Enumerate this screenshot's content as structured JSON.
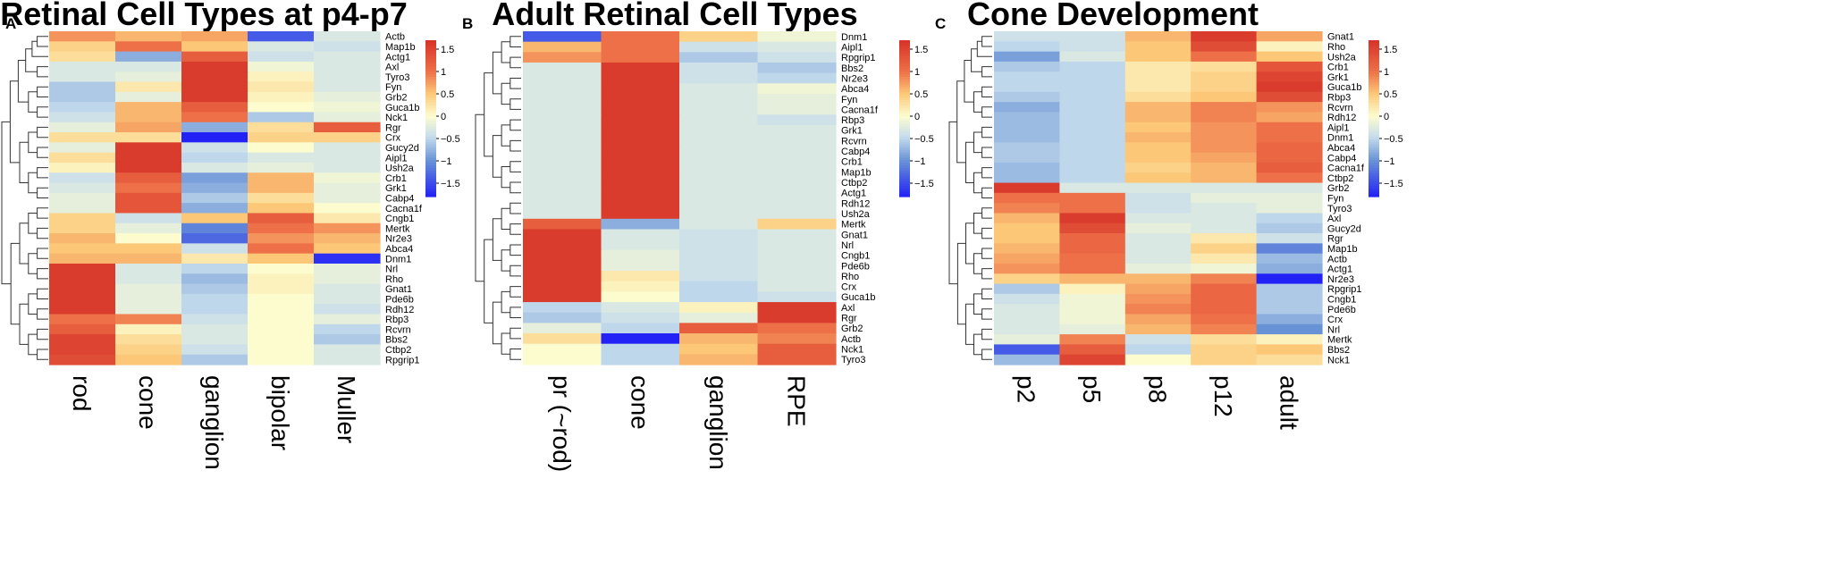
{
  "chart_data": [
    {
      "type": "heatmap",
      "panel": "A",
      "title": "Retinal Cell Types at p4-p7",
      "columns": [
        "rod",
        "cone",
        "ganglion",
        "bipolar",
        "Muller"
      ],
      "rows": [
        "Actb",
        "Map1b",
        "Actg1",
        "Axl",
        "Tyro3",
        "Fyn",
        "Grb2",
        "Guca1b",
        "Nck1",
        "Rgr",
        "Crx",
        "Gucy2d",
        "Aipl1",
        "Ush2a",
        "Crb1",
        "Grk1",
        "Cabp4",
        "Cacna1f",
        "Cngb1",
        "Mertk",
        "Nr2e3",
        "Abca4",
        "Dnm1",
        "Nrl",
        "Rho",
        "Gnat1",
        "Pde6b",
        "Rdh12",
        "Rbp3",
        "Rcvrn",
        "Bbs2",
        "Ctbp2",
        "Rpgrip1"
      ],
      "values": [
        [
          0.8,
          0.6,
          0.7,
          -1.4,
          -0.3
        ],
        [
          0.4,
          1.0,
          0.5,
          -0.3,
          -0.4
        ],
        [
          0.3,
          -0.8,
          1.2,
          -0.4,
          -0.3
        ],
        [
          -0.3,
          -0.3,
          1.6,
          -0.1,
          -0.3
        ],
        [
          -0.3,
          -0.2,
          1.6,
          0.1,
          -0.3
        ],
        [
          -0.6,
          0.2,
          1.6,
          0.2,
          -0.3
        ],
        [
          -0.6,
          -0.2,
          1.6,
          0.1,
          -0.2
        ],
        [
          -0.5,
          0.6,
          1.2,
          0.0,
          -0.1
        ],
        [
          -0.4,
          0.6,
          1.0,
          -0.6,
          -0.2
        ],
        [
          -0.2,
          0.7,
          -0.8,
          0.3,
          1.2
        ],
        [
          0.3,
          0.3,
          -1.9,
          0.4,
          0.4
        ],
        [
          -0.2,
          1.6,
          -0.4,
          0.0,
          -0.3
        ],
        [
          0.3,
          1.6,
          -0.5,
          -0.3,
          -0.3
        ],
        [
          0.1,
          1.6,
          -0.3,
          -0.2,
          -0.3
        ],
        [
          -0.4,
          1.2,
          -0.9,
          0.6,
          -0.1
        ],
        [
          -0.3,
          1.0,
          -0.8,
          0.6,
          -0.2
        ],
        [
          -0.2,
          1.3,
          -0.6,
          0.3,
          -0.2
        ],
        [
          -0.2,
          1.3,
          -0.8,
          0.5,
          0.0
        ],
        [
          0.4,
          -0.4,
          0.5,
          1.2,
          0.2
        ],
        [
          0.4,
          -0.2,
          -1.1,
          1.0,
          0.8
        ],
        [
          0.6,
          0.0,
          -1.3,
          0.8,
          0.6
        ],
        [
          0.5,
          0.5,
          -0.4,
          1.0,
          0.5
        ],
        [
          0.6,
          0.6,
          0.2,
          0.5,
          -1.7
        ],
        [
          1.6,
          -0.3,
          -0.5,
          0.0,
          -0.2
        ],
        [
          1.6,
          -0.3,
          -0.7,
          0.1,
          -0.2
        ],
        [
          1.6,
          -0.2,
          -0.6,
          0.1,
          -0.3
        ],
        [
          1.6,
          -0.2,
          -0.5,
          0.0,
          -0.3
        ],
        [
          1.6,
          -0.2,
          -0.5,
          0.0,
          -0.4
        ],
        [
          1.0,
          0.9,
          -0.4,
          0.0,
          -0.2
        ],
        [
          1.2,
          0.1,
          -0.3,
          0.0,
          -0.5
        ],
        [
          1.5,
          0.3,
          -0.3,
          0.0,
          -0.6
        ],
        [
          1.5,
          0.4,
          -0.4,
          0.0,
          -0.3
        ],
        [
          1.4,
          0.5,
          -0.6,
          0.0,
          -0.3
        ]
      ]
    },
    {
      "type": "heatmap",
      "panel": "B",
      "title": "Adult Retinal Cell Types",
      "columns": [
        "pr (~rod)",
        "cone",
        "ganglion",
        "RPE"
      ],
      "rows": [
        "Dnm1",
        "Aipl1",
        "Rpgrip1",
        "Bbs2",
        "Nr2e3",
        "Abca4",
        "Fyn",
        "Cacna1f",
        "Rbp3",
        "Grk1",
        "Rcvrn",
        "Cabp4",
        "Crb1",
        "Map1b",
        "Ctbp2",
        "Actg1",
        "Rdh12",
        "Ush2a",
        "Mertk",
        "Gnat1",
        "Nrl",
        "Cngb1",
        "Pde6b",
        "Rho",
        "Crx",
        "Guca1b",
        "Axl",
        "Rgr",
        "Grb2",
        "Actb",
        "Nck1",
        "Tyro3"
      ],
      "values": [
        [
          -1.4,
          1.0,
          0.4,
          -0.1
        ],
        [
          0.6,
          1.0,
          -0.4,
          -0.3
        ],
        [
          0.8,
          1.0,
          -0.6,
          -0.4
        ],
        [
          -0.3,
          1.6,
          -0.4,
          -0.6
        ],
        [
          -0.3,
          1.6,
          -0.4,
          -0.5
        ],
        [
          -0.3,
          1.6,
          -0.3,
          -0.1
        ],
        [
          -0.3,
          1.6,
          -0.3,
          -0.2
        ],
        [
          -0.3,
          1.6,
          -0.3,
          -0.2
        ],
        [
          -0.3,
          1.6,
          -0.3,
          -0.4
        ],
        [
          -0.3,
          1.6,
          -0.3,
          -0.3
        ],
        [
          -0.3,
          1.6,
          -0.3,
          -0.3
        ],
        [
          -0.3,
          1.6,
          -0.3,
          -0.3
        ],
        [
          -0.3,
          1.6,
          -0.3,
          -0.3
        ],
        [
          -0.3,
          1.6,
          -0.3,
          -0.3
        ],
        [
          -0.3,
          1.6,
          -0.3,
          -0.3
        ],
        [
          -0.3,
          1.6,
          -0.3,
          -0.3
        ],
        [
          -0.3,
          1.6,
          -0.3,
          -0.3
        ],
        [
          -0.3,
          1.6,
          -0.3,
          -0.3
        ],
        [
          1.2,
          -0.8,
          -0.3,
          0.4
        ],
        [
          1.6,
          -0.3,
          -0.4,
          -0.3
        ],
        [
          1.6,
          -0.3,
          -0.4,
          -0.3
        ],
        [
          1.6,
          -0.2,
          -0.4,
          -0.3
        ],
        [
          1.6,
          -0.2,
          -0.4,
          -0.3
        ],
        [
          1.6,
          0.2,
          -0.4,
          -0.3
        ],
        [
          1.6,
          0.1,
          -0.5,
          -0.3
        ],
        [
          1.6,
          0.0,
          -0.5,
          -0.4
        ],
        [
          -0.5,
          -0.3,
          0.1,
          1.6
        ],
        [
          -0.6,
          -0.4,
          -0.2,
          1.6
        ],
        [
          -0.2,
          -0.5,
          1.2,
          1.0
        ],
        [
          0.3,
          -1.8,
          0.6,
          0.9
        ],
        [
          0.0,
          -0.5,
          0.5,
          1.2
        ],
        [
          0.0,
          -0.5,
          0.6,
          1.2
        ]
      ]
    },
    {
      "type": "heatmap",
      "panel": "C",
      "title": "Cone Development",
      "columns": [
        "p2",
        "p5",
        "p8",
        "p12",
        "adult"
      ],
      "rows": [
        "Gnat1",
        "Rho",
        "Ush2a",
        "Crb1",
        "Grk1",
        "Guca1b",
        "Rbp3",
        "Rcvrn",
        "Rdh12",
        "Aipl1",
        "Dnm1",
        "Abca4",
        "Cabp4",
        "Cacna1f",
        "Ctbp2",
        "Grb2",
        "Fyn",
        "Tyro3",
        "Axl",
        "Gucy2d",
        "Rgr",
        "Map1b",
        "Actb",
        "Actg1",
        "Nr2e3",
        "Rpgrip1",
        "Cngb1",
        "Pde6b",
        "Crx",
        "Nrl",
        "Mertk",
        "Bbs2",
        "Nck1"
      ],
      "values": [
        [
          -0.4,
          -0.4,
          0.6,
          1.6,
          0.7
        ],
        [
          -0.5,
          -0.4,
          0.5,
          1.4,
          0.1
        ],
        [
          -0.9,
          -0.3,
          0.5,
          1.0,
          0.5
        ],
        [
          -0.6,
          -0.5,
          0.2,
          0.3,
          1.3
        ],
        [
          -0.5,
          -0.5,
          0.2,
          0.4,
          1.5
        ],
        [
          -0.5,
          -0.5,
          0.2,
          0.4,
          1.6
        ],
        [
          -0.6,
          -0.5,
          0.3,
          0.5,
          1.4
        ],
        [
          -0.8,
          -0.5,
          0.6,
          0.9,
          0.8
        ],
        [
          -0.7,
          -0.5,
          0.6,
          0.9,
          0.7
        ],
        [
          -0.7,
          -0.5,
          0.5,
          0.8,
          1.0
        ],
        [
          -0.7,
          -0.5,
          0.6,
          0.8,
          1.0
        ],
        [
          -0.6,
          -0.5,
          0.5,
          0.8,
          1.1
        ],
        [
          -0.6,
          -0.5,
          0.5,
          0.7,
          1.1
        ],
        [
          -0.7,
          -0.5,
          0.4,
          0.6,
          1.2
        ],
        [
          -0.7,
          -0.5,
          0.5,
          0.6,
          1.0
        ],
        [
          1.6,
          -0.3,
          -0.3,
          -0.3,
          -0.3
        ],
        [
          1.0,
          1.0,
          -0.4,
          -0.2,
          -0.2
        ],
        [
          0.9,
          1.0,
          -0.4,
          -0.3,
          -0.2
        ],
        [
          0.6,
          1.6,
          -0.3,
          -0.3,
          -0.5
        ],
        [
          0.5,
          1.4,
          -0.2,
          -0.3,
          -0.6
        ],
        [
          0.5,
          1.1,
          -0.3,
          0.2,
          -0.4
        ],
        [
          0.6,
          1.1,
          -0.3,
          0.4,
          -1.1
        ],
        [
          0.7,
          1.0,
          -0.3,
          0.2,
          -0.7
        ],
        [
          0.8,
          1.0,
          -0.2,
          -0.1,
          -0.8
        ],
        [
          0.4,
          0.6,
          0.6,
          0.9,
          -1.8
        ],
        [
          -0.6,
          0.1,
          0.7,
          1.1,
          -0.6
        ],
        [
          -0.4,
          -0.1,
          0.8,
          1.1,
          -0.6
        ],
        [
          -0.3,
          -0.1,
          0.9,
          1.1,
          -0.6
        ],
        [
          -0.3,
          -0.1,
          0.7,
          1.0,
          -0.8
        ],
        [
          -0.3,
          -0.2,
          0.6,
          0.9,
          -1.0
        ],
        [
          -0.2,
          0.9,
          -0.4,
          0.3,
          0.1
        ],
        [
          -1.4,
          1.2,
          -0.5,
          0.4,
          0.5
        ],
        [
          -0.7,
          1.5,
          0.0,
          0.4,
          0.3
        ]
      ]
    }
  ],
  "legend": {
    "ticks": [
      "1.5",
      "1",
      "0.5",
      "0",
      "−0.5",
      "−1",
      "−1.5"
    ],
    "tick_values": [
      1.5,
      1,
      0.5,
      0,
      -0.5,
      -1,
      -1.5
    ],
    "range": [
      -1.8,
      1.7
    ]
  }
}
